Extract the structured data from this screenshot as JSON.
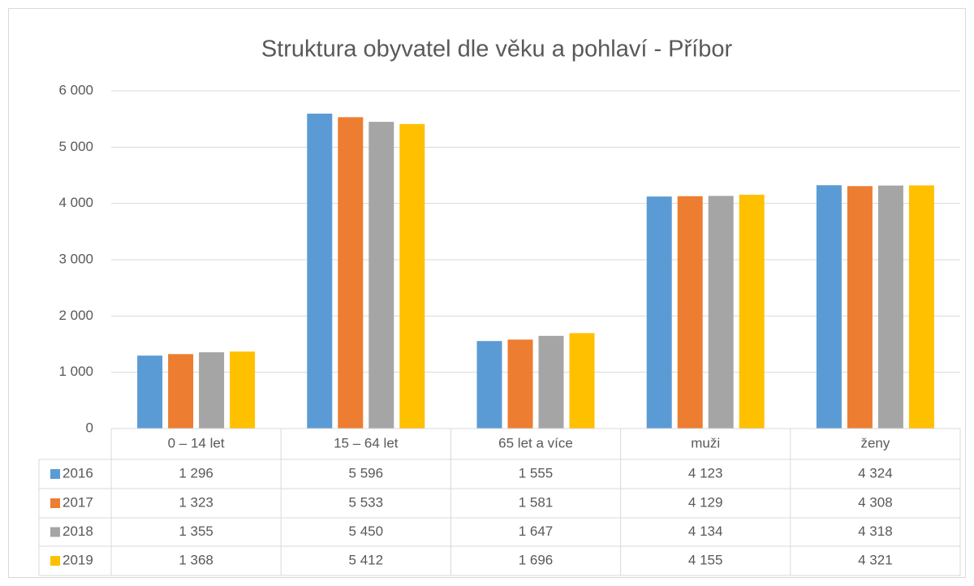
{
  "chart_data": {
    "type": "bar",
    "title": "Struktura obyvatel dle věku a pohlaví - Příbor",
    "categories": [
      "0 – 14 let",
      "15 – 64 let",
      "65 let a více",
      "muži",
      "ženy"
    ],
    "series": [
      {
        "name": "2016",
        "color": "#5b9bd5",
        "values": [
          1296,
          5596,
          1555,
          4123,
          4324
        ],
        "value_labels": [
          "1 296",
          "5 596",
          "1 555",
          "4 123",
          "4 324"
        ]
      },
      {
        "name": "2017",
        "color": "#ed7d31",
        "values": [
          1323,
          5533,
          1581,
          4129,
          4308
        ],
        "value_labels": [
          "1 323",
          "5 533",
          "1 581",
          "4 129",
          "4 308"
        ]
      },
      {
        "name": "2018",
        "color": "#a5a5a5",
        "values": [
          1355,
          5450,
          1647,
          4134,
          4318
        ],
        "value_labels": [
          "1 355",
          "5 450",
          "1 647",
          "4 134",
          "4 318"
        ]
      },
      {
        "name": "2019",
        "color": "#ffc000",
        "values": [
          1368,
          5412,
          1696,
          4155,
          4321
        ],
        "value_labels": [
          "1 368",
          "5 412",
          "1 696",
          "4 155",
          "4 321"
        ]
      }
    ],
    "ylim": [
      0,
      6000
    ],
    "yticks": [
      0,
      {
        "value": 1000,
        "label": "1 000"
      },
      {
        "value": 2000,
        "label": "2 000"
      },
      {
        "value": 3000,
        "label": "3 000"
      },
      {
        "value": 4000,
        "label": "4 000"
      },
      {
        "value": 5000,
        "label": "5 000"
      },
      {
        "value": 6000,
        "label": "6 000"
      }
    ],
    "grid": true
  }
}
